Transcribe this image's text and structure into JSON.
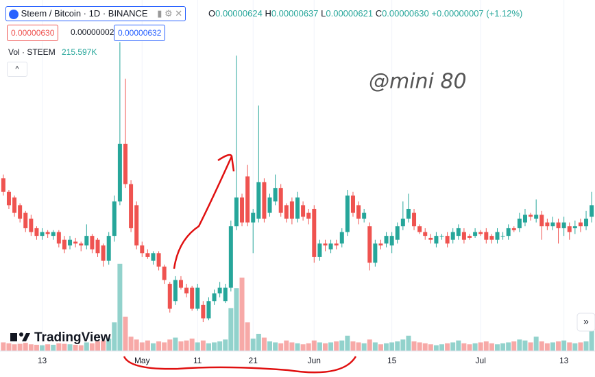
{
  "chart_data": {
    "type": "candlestick",
    "title": "Steem / Bitcoin · 1D · BINANCE",
    "ohlc_labels": {
      "o": "O",
      "h": "H",
      "l": "L",
      "c": "C"
    },
    "ohlc_values": {
      "o": "0.00000624",
      "h": "0.00000637",
      "l": "0.00000621",
      "c": "0.00000630"
    },
    "change": "+0.00000007 (+1.12%)",
    "price_boxes": {
      "bid": "0.00000630",
      "spread": "0.00000002",
      "ask": "0.00000632"
    },
    "volume_label": "Vol · STEEM",
    "volume_value": "215.597K",
    "watermark": "@mini 80",
    "logo": "TradingView",
    "up_color": "#26a69a",
    "down_color": "#ef5350",
    "ylim": [
      5.54e-06,
      7.37e-06
    ],
    "volume_lim": [
      0,
      1000000
    ],
    "xlim": [
      -0.6,
      106.6
    ],
    "xticks": [
      {
        "value": 7,
        "label": "13"
      },
      {
        "value": 25,
        "label": "May"
      },
      {
        "value": 35,
        "label": "11"
      },
      {
        "value": 45,
        "label": "21"
      },
      {
        "value": 56,
        "label": "Jun"
      },
      {
        "value": 70,
        "label": "15"
      },
      {
        "value": 86,
        "label": "Jul"
      },
      {
        "value": 101,
        "label": "13"
      }
    ],
    "ohlc": [
      [
        6.44e-06,
        6.46e-06,
        6.35e-06,
        6.37e-06
      ],
      [
        6.37e-06,
        6.38e-06,
        6.28e-06,
        6.3e-06
      ],
      [
        6.34e-06,
        6.35e-06,
        6.24e-06,
        6.26e-06
      ],
      [
        6.3e-06,
        6.31e-06,
        6.21e-06,
        6.23e-06
      ],
      [
        6.26e-06,
        6.27e-06,
        6.16e-06,
        6.18e-06
      ],
      [
        6.23e-06,
        6.25e-06,
        6.14e-06,
        6.16e-06
      ],
      [
        6.18e-06,
        6.19e-06,
        6.12e-06,
        6.14e-06
      ],
      [
        6.14e-06,
        6.18e-06,
        6.12e-06,
        6.16e-06
      ],
      [
        6.16e-06,
        6.17e-06,
        6.13e-06,
        6.15e-06
      ],
      [
        6.14e-06,
        6.17e-06,
        6.12e-06,
        6.16e-06
      ],
      [
        6.16e-06,
        6.17e-06,
        6.08e-06,
        6.1e-06
      ],
      [
        6.12e-06,
        6.14e-06,
        6.05e-06,
        6.07e-06
      ],
      [
        6.09e-06,
        6.14e-06,
        6.07e-06,
        6.12e-06
      ],
      [
        6.11e-06,
        6.13e-06,
        6.08e-06,
        6.1e-06
      ],
      [
        6.1e-06,
        6.11e-06,
        6.06e-06,
        6.09e-06
      ],
      [
        6.09e-06,
        6.2e-06,
        6.07e-06,
        6.14e-06
      ],
      [
        6.14e-06,
        6.15e-06,
        6.05e-06,
        6.07e-06
      ],
      [
        6.12e-06,
        6.13e-06,
        6.03e-06,
        6.05e-06
      ],
      [
        6.09e-06,
        6.1e-06,
        5.98e-06,
        6.01e-06
      ],
      [
        6.01e-06,
        6.16e-06,
        5.99e-06,
        6.14e-06
      ],
      [
        6.14e-06,
        6.35e-06,
        6.11e-06,
        6.32e-06
      ],
      [
        6.32e-06,
        7.15e-06,
        6.3e-06,
        6.62e-06
      ],
      [
        6.62e-06,
        6.96e-06,
        6.39e-06,
        6.41e-06
      ],
      [
        6.41e-06,
        6.43e-06,
        6.16e-06,
        6.18e-06
      ],
      [
        6.3e-06,
        6.32e-06,
        6.07e-06,
        6.09e-06
      ],
      [
        6.09e-06,
        6.11e-06,
        6.03e-06,
        6.05e-06
      ],
      [
        6.05e-06,
        6.07e-06,
        6.02e-06,
        6.03e-06
      ],
      [
        6.01e-06,
        6.06e-06,
        5.99e-06,
        6.05e-06
      ],
      [
        6.05e-06,
        6.06e-06,
        5.96e-06,
        5.98e-06
      ],
      [
        5.98e-06,
        5.99e-06,
        5.89e-06,
        5.91e-06
      ],
      [
        5.89e-06,
        5.9e-06,
        5.74e-06,
        5.76e-06
      ],
      [
        5.8e-06,
        5.93e-06,
        5.78e-06,
        5.91e-06
      ],
      [
        5.91e-06,
        5.93e-06,
        5.86e-06,
        5.87e-06
      ],
      [
        5.87e-06,
        5.89e-06,
        5.82e-06,
        5.84e-06
      ],
      [
        5.87e-06,
        5.88e-06,
        5.75e-06,
        5.76e-06
      ],
      [
        5.76e-06,
        5.89e-06,
        5.75e-06,
        5.87e-06
      ],
      [
        5.78e-06,
        5.8e-06,
        5.69e-06,
        5.71e-06
      ],
      [
        5.71e-06,
        5.82e-06,
        5.7e-06,
        5.8e-06
      ],
      [
        5.8e-06,
        5.86e-06,
        5.78e-06,
        5.84e-06
      ],
      [
        5.84e-06,
        5.9e-06,
        5.82e-06,
        5.87e-06
      ],
      [
        5.8e-06,
        5.89e-06,
        5.79e-06,
        5.87e-06
      ],
      [
        5.87e-06,
        6.22e-06,
        5.85e-06,
        6.19e-06
      ],
      [
        6.19e-06,
        7.08e-06,
        6.17e-06,
        6.34e-06
      ],
      [
        6.34e-06,
        6.36e-06,
        6.19e-06,
        6.21e-06
      ],
      [
        6.45e-06,
        6.51e-06,
        6.19e-06,
        6.21e-06
      ],
      [
        6.21e-06,
        6.28e-06,
        6.05e-06,
        6.26e-06
      ],
      [
        6.23e-06,
        6.82e-06,
        6.21e-06,
        6.42e-06
      ],
      [
        6.42e-06,
        6.44e-06,
        6.21e-06,
        6.23e-06
      ],
      [
        6.26e-06,
        6.36e-06,
        6.24e-06,
        6.34e-06
      ],
      [
        6.32e-06,
        6.46e-06,
        6.3e-06,
        6.39e-06
      ],
      [
        6.39e-06,
        6.41e-06,
        6.24e-06,
        6.26e-06
      ],
      [
        6.3e-06,
        6.31e-06,
        6.21e-06,
        6.23e-06
      ],
      [
        6.32e-06,
        6.34e-06,
        6.2e-06,
        6.23e-06
      ],
      [
        6.23e-06,
        6.37e-06,
        6.21e-06,
        6.34e-06
      ],
      [
        6.3e-06,
        6.32e-06,
        6.22e-06,
        6.24e-06
      ],
      [
        6.26e-06,
        6.28e-06,
        6.2e-06,
        6.23e-06
      ],
      [
        6.28e-06,
        6.3e-06,
        6e-06,
        6.03e-06
      ],
      [
        6.03e-06,
        6.12e-06,
        6.01e-06,
        6.1e-06
      ],
      [
        6.1e-06,
        6.12e-06,
        6.06e-06,
        6.09e-06
      ],
      [
        6.07e-06,
        6.12e-06,
        6.05e-06,
        6.1e-06
      ],
      [
        6.1e-06,
        6.12e-06,
        6.07e-06,
        6.09e-06
      ],
      [
        6.1e-06,
        6.18e-06,
        6.08e-06,
        6.16e-06
      ],
      [
        6.16e-06,
        6.38e-06,
        6.14e-06,
        6.35e-06
      ],
      [
        6.35e-06,
        6.37e-06,
        6.24e-06,
        6.26e-06
      ],
      [
        6.3e-06,
        6.32e-06,
        6.2e-06,
        6.23e-06
      ],
      [
        6.23e-06,
        6.28e-06,
        6.21e-06,
        6.26e-06
      ],
      [
        6.19e-06,
        6.21e-06,
        5.96e-06,
        6e-06
      ],
      [
        6e-06,
        6.12e-06,
        5.98e-06,
        6.1e-06
      ],
      [
        6.1e-06,
        6.12e-06,
        6.07e-06,
        6.09e-06
      ],
      [
        6.1e-06,
        6.16e-06,
        6.08e-06,
        6.14e-06
      ],
      [
        6.09e-06,
        6.16e-06,
        6.05e-06,
        6.14e-06
      ],
      [
        6.12e-06,
        6.21e-06,
        6.1e-06,
        6.19e-06
      ],
      [
        6.19e-06,
        6.32e-06,
        6.17e-06,
        6.23e-06
      ],
      [
        6.23e-06,
        6.36e-06,
        6.21e-06,
        6.28e-06
      ],
      [
        6.26e-06,
        6.28e-06,
        6.17e-06,
        6.19e-06
      ],
      [
        6.19e-06,
        6.2e-06,
        6.15e-06,
        6.16e-06
      ],
      [
        6.16e-06,
        6.18e-06,
        6.12e-06,
        6.14e-06
      ],
      [
        6.13e-06,
        6.15e-06,
        6.1e-06,
        6.12e-06
      ],
      [
        6.1e-06,
        6.16e-06,
        6.08e-06,
        6.14e-06
      ],
      [
        6.14e-06,
        6.15e-06,
        6.12e-06,
        6.14e-06
      ],
      [
        6.14e-06,
        6.16e-06,
        6.08e-06,
        6.1e-06
      ],
      [
        6.12e-06,
        6.18e-06,
        6.1e-06,
        6.16e-06
      ],
      [
        6.14e-06,
        6.2e-06,
        6.12e-06,
        6.18e-06
      ],
      [
        6.16e-06,
        6.18e-06,
        6.1e-06,
        6.12e-06
      ],
      [
        6.14e-06,
        6.15e-06,
        6.12e-06,
        6.13e-06
      ],
      [
        6.14e-06,
        6.18e-06,
        6.13e-06,
        6.16e-06
      ],
      [
        6.16e-06,
        6.17e-06,
        6.14e-06,
        6.15e-06
      ],
      [
        6.16e-06,
        6.18e-06,
        6.1e-06,
        6.12e-06
      ],
      [
        6.14e-06,
        6.15e-06,
        6.1e-06,
        6.12e-06
      ],
      [
        6.12e-06,
        6.18e-06,
        6.1e-06,
        6.16e-06
      ],
      [
        6.14e-06,
        6.16e-06,
        6.12e-06,
        6.14e-06
      ],
      [
        6.14e-06,
        6.2e-06,
        6.12e-06,
        6.18e-06
      ],
      [
        6.18e-06,
        6.19e-06,
        6.16e-06,
        6.17e-06
      ],
      [
        6.18e-06,
        6.26e-06,
        6.16e-06,
        6.23e-06
      ],
      [
        6.21e-06,
        6.28e-06,
        6.19e-06,
        6.25e-06
      ],
      [
        6.25e-06,
        6.26e-06,
        6.22e-06,
        6.24e-06
      ],
      [
        6.23e-06,
        6.33e-06,
        6.21e-06,
        6.25e-06
      ],
      [
        6.25e-06,
        6.27e-06,
        6.12e-06,
        6.19e-06
      ],
      [
        6.21e-06,
        6.23e-06,
        6.17e-06,
        6.19e-06
      ],
      [
        6.19e-06,
        6.24e-06,
        6.17e-06,
        6.21e-06
      ],
      [
        6.21e-06,
        6.23e-06,
        6.1e-06,
        6.18e-06
      ],
      [
        6.18e-06,
        6.24e-06,
        6.14e-06,
        6.21e-06
      ],
      [
        6.19e-06,
        6.21e-06,
        6.12e-06,
        6.16e-06
      ],
      [
        6.18e-06,
        6.22e-06,
        6.15e-06,
        6.19e-06
      ],
      [
        6.21e-06,
        6.23e-06,
        6.16e-06,
        6.19e-06
      ],
      [
        6.19e-06,
        6.27e-06,
        6.17e-06,
        6.23e-06
      ],
      [
        6.24e-06,
        6.37e-06,
        6.21e-06,
        6.3e-06
      ]
    ],
    "volume": [
      90000,
      80000,
      70000,
      75000,
      85000,
      70000,
      65000,
      60000,
      70000,
      65000,
      80000,
      75000,
      70000,
      65000,
      60000,
      90000,
      80000,
      100000,
      110000,
      130000,
      300000,
      915000,
      360000,
      150000,
      120000,
      90000,
      110000,
      80000,
      100000,
      90000,
      120000,
      140000,
      100000,
      110000,
      130000,
      90000,
      110000,
      80000,
      90000,
      100000,
      120000,
      450000,
      660000,
      770000,
      300000,
      130000,
      180000,
      140000,
      100000,
      90000,
      80000,
      110000,
      90000,
      80000,
      70000,
      80000,
      110000,
      90000,
      80000,
      90000,
      100000,
      110000,
      160000,
      100000,
      90000,
      80000,
      120000,
      90000,
      70000,
      80000,
      90000,
      100000,
      120000,
      160000,
      100000,
      90000,
      80000,
      70000,
      60000,
      70000,
      80000,
      90000,
      110000,
      80000,
      70000,
      80000,
      90000,
      100000,
      80000,
      70000,
      80000,
      90000,
      100000,
      120000,
      110000,
      90000,
      150000,
      100000,
      80000,
      90000,
      100000,
      110000,
      90000,
      80000,
      90000,
      100000,
      215597
    ]
  }
}
